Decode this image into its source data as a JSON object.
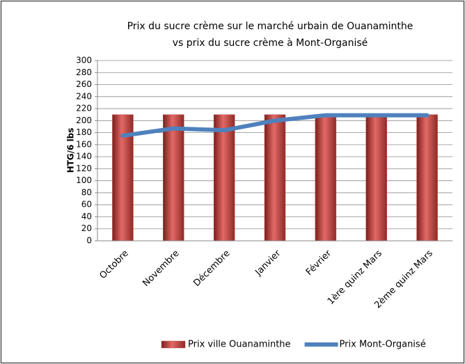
{
  "chart_data": {
    "type": "bar",
    "title": [
      "Prix du sucre crème sur le marché urbain de Ouanaminthe",
      "vs prix du sucre crème à Mont-Organisé"
    ],
    "y_label": "HTG/6 lbs",
    "categories": [
      "Octobre",
      "Novembre",
      "Décembre",
      "Janvier",
      "Février",
      "1ère quinz Mars",
      "2ème quinz Mars"
    ],
    "series": [
      {
        "name": "Prix ville Ouanaminthe",
        "type": "bar",
        "color": "#c0504d",
        "values": [
          210,
          210,
          210,
          210,
          210,
          210,
          210
        ]
      },
      {
        "name": "Prix Mont-Organisé",
        "type": "line",
        "color": "#4f81bd",
        "values": [
          175,
          187,
          184,
          200,
          209,
          209,
          209
        ]
      }
    ],
    "ylim": [
      0,
      300
    ],
    "yticks": [
      0,
      20,
      40,
      60,
      80,
      100,
      120,
      140,
      160,
      180,
      200,
      220,
      240,
      260,
      280,
      300
    ],
    "grid": true,
    "legend": "bottom"
  }
}
